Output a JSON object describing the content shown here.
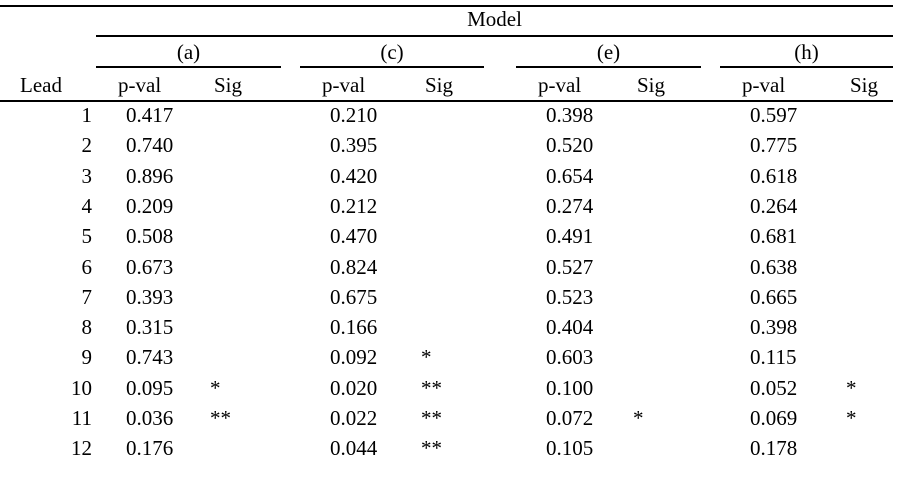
{
  "table": {
    "model_label": "Model",
    "models": [
      "(a)",
      "(c)",
      "(e)",
      "(h)"
    ],
    "lead_header": "Lead",
    "pval_header": "p-val",
    "sig_header": "Sig",
    "rows": [
      {
        "lead": "1",
        "values": [
          [
            "0.417",
            ""
          ],
          [
            "0.210",
            ""
          ],
          [
            "0.398",
            ""
          ],
          [
            "0.597",
            ""
          ]
        ]
      },
      {
        "lead": "2",
        "values": [
          [
            "0.740",
            ""
          ],
          [
            "0.395",
            ""
          ],
          [
            "0.520",
            ""
          ],
          [
            "0.775",
            ""
          ]
        ]
      },
      {
        "lead": "3",
        "values": [
          [
            "0.896",
            ""
          ],
          [
            "0.420",
            ""
          ],
          [
            "0.654",
            ""
          ],
          [
            "0.618",
            ""
          ]
        ]
      },
      {
        "lead": "4",
        "values": [
          [
            "0.209",
            ""
          ],
          [
            "0.212",
            ""
          ],
          [
            "0.274",
            ""
          ],
          [
            "0.264",
            ""
          ]
        ]
      },
      {
        "lead": "5",
        "values": [
          [
            "0.508",
            ""
          ],
          [
            "0.470",
            ""
          ],
          [
            "0.491",
            ""
          ],
          [
            "0.681",
            ""
          ]
        ]
      },
      {
        "lead": "6",
        "values": [
          [
            "0.673",
            ""
          ],
          [
            "0.824",
            ""
          ],
          [
            "0.527",
            ""
          ],
          [
            "0.638",
            ""
          ]
        ]
      },
      {
        "lead": "7",
        "values": [
          [
            "0.393",
            ""
          ],
          [
            "0.675",
            ""
          ],
          [
            "0.523",
            ""
          ],
          [
            "0.665",
            ""
          ]
        ]
      },
      {
        "lead": "8",
        "values": [
          [
            "0.315",
            ""
          ],
          [
            "0.166",
            ""
          ],
          [
            "0.404",
            ""
          ],
          [
            "0.398",
            ""
          ]
        ]
      },
      {
        "lead": "9",
        "values": [
          [
            "0.743",
            ""
          ],
          [
            "0.092",
            "*"
          ],
          [
            "0.603",
            ""
          ],
          [
            "0.115",
            ""
          ]
        ]
      },
      {
        "lead": "10",
        "values": [
          [
            "0.095",
            "*"
          ],
          [
            "0.020",
            "**"
          ],
          [
            "0.100",
            ""
          ],
          [
            "0.052",
            "*"
          ]
        ]
      },
      {
        "lead": "11",
        "values": [
          [
            "0.036",
            "**"
          ],
          [
            "0.022",
            "**"
          ],
          [
            "0.072",
            "*"
          ],
          [
            "0.069",
            "*"
          ]
        ]
      },
      {
        "lead": "12",
        "values": [
          [
            "0.176",
            ""
          ],
          [
            "0.044",
            "**"
          ],
          [
            "0.105",
            ""
          ],
          [
            "0.178",
            ""
          ]
        ]
      }
    ]
  }
}
